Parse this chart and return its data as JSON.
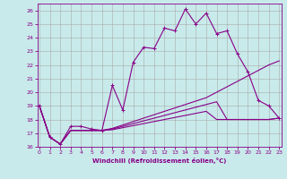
{
  "xlabel": "Windchill (Refroidissement éolien,°C)",
  "background_color": "#c8eaea",
  "grid_color": "#aaaaaa",
  "line_color": "#880088",
  "x_ticks": [
    0,
    1,
    2,
    3,
    4,
    5,
    6,
    7,
    8,
    9,
    10,
    11,
    12,
    13,
    14,
    15,
    16,
    17,
    18,
    19,
    20,
    21,
    22,
    23
  ],
  "y_ticks": [
    16,
    17,
    18,
    19,
    20,
    21,
    22,
    23,
    24,
    25,
    26
  ],
  "xlim": [
    -0.2,
    23.2
  ],
  "ylim": [
    16,
    26.5
  ],
  "line1_x": [
    0,
    1,
    2,
    3,
    4,
    5,
    6,
    7,
    8,
    9,
    10,
    11,
    12,
    13,
    14,
    15,
    16,
    17,
    18,
    19,
    20,
    21,
    22,
    23
  ],
  "line1_y": [
    19.0,
    16.7,
    16.2,
    17.5,
    17.5,
    17.3,
    17.2,
    20.5,
    18.7,
    22.2,
    23.3,
    23.2,
    24.7,
    24.5,
    26.1,
    25.0,
    25.8,
    24.3,
    24.5,
    22.8,
    21.5,
    19.4,
    19.0,
    18.1
  ],
  "line2_x": [
    0,
    1,
    2,
    3,
    4,
    5,
    6,
    7,
    8,
    9,
    10,
    11,
    12,
    13,
    14,
    15,
    16,
    17,
    18,
    19,
    20,
    21,
    22,
    23
  ],
  "line2_y": [
    19.0,
    16.7,
    16.2,
    17.2,
    17.2,
    17.2,
    17.2,
    17.35,
    17.6,
    17.85,
    18.1,
    18.35,
    18.6,
    18.85,
    19.1,
    19.35,
    19.6,
    20.0,
    20.4,
    20.8,
    21.2,
    21.6,
    22.0,
    22.3
  ],
  "line3_x": [
    0,
    1,
    2,
    3,
    4,
    5,
    6,
    7,
    8,
    9,
    10,
    11,
    12,
    13,
    14,
    15,
    16,
    17,
    18,
    19,
    20,
    21,
    22,
    23
  ],
  "line3_y": [
    19.0,
    16.7,
    16.2,
    17.2,
    17.2,
    17.2,
    17.2,
    17.3,
    17.5,
    17.7,
    17.9,
    18.1,
    18.3,
    18.5,
    18.7,
    18.9,
    19.1,
    19.3,
    18.0,
    18.0,
    18.0,
    18.0,
    18.0,
    18.1
  ],
  "line4_x": [
    0,
    1,
    2,
    3,
    4,
    5,
    6,
    7,
    8,
    9,
    10,
    11,
    12,
    13,
    14,
    15,
    16,
    17,
    18,
    19,
    20,
    21,
    22,
    23
  ],
  "line4_y": [
    19.0,
    16.7,
    16.2,
    17.2,
    17.2,
    17.2,
    17.2,
    17.25,
    17.4,
    17.55,
    17.7,
    17.85,
    18.0,
    18.15,
    18.3,
    18.45,
    18.6,
    18.0,
    18.0,
    18.0,
    18.0,
    18.0,
    18.0,
    18.1
  ]
}
